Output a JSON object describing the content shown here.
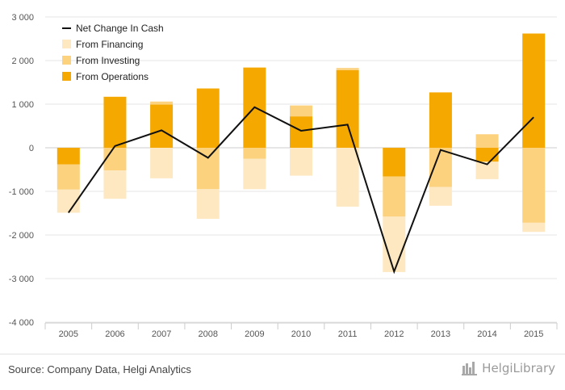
{
  "chart_data": {
    "type": "bar",
    "stacked": true,
    "categories": [
      "2005",
      "2006",
      "2007",
      "2008",
      "2009",
      "2010",
      "2011",
      "2012",
      "2013",
      "2014",
      "2015"
    ],
    "series": [
      {
        "name": "From Operations",
        "kind": "bar",
        "color": "#f5a800",
        "values": [
          -380,
          1170,
          990,
          1360,
          1840,
          720,
          1780,
          -660,
          1270,
          -320,
          2620
        ]
      },
      {
        "name": "From Investing",
        "kind": "bar",
        "color": "#fcd27f",
        "values": [
          -580,
          -520,
          70,
          -950,
          -250,
          250,
          50,
          -920,
          -900,
          310,
          -1720
        ]
      },
      {
        "name": "From Financing",
        "kind": "bar",
        "color": "#fde8c1",
        "values": [
          -530,
          -650,
          -700,
          -680,
          -700,
          -640,
          -1350,
          -1270,
          -430,
          -400,
          -210
        ]
      },
      {
        "name": "Net Change In Cash",
        "kind": "line",
        "color": "#111111",
        "values": [
          -1490,
          40,
          400,
          -230,
          930,
          390,
          530,
          -2840,
          -50,
          -380,
          700
        ]
      }
    ],
    "legend_order": [
      "Net Change In Cash",
      "From Financing",
      "From Investing",
      "From Operations"
    ],
    "ylim": [
      -4000,
      3000
    ],
    "yticks": [
      -4000,
      -3000,
      -2000,
      -1000,
      0,
      1000,
      2000,
      3000
    ],
    "ytick_labels": [
      "-4 000",
      "-3 000",
      "-2 000",
      "-1 000",
      "0",
      "1 000",
      "2 000",
      "3 000"
    ],
    "legend_position": "top-left",
    "grid": true
  },
  "footer": {
    "source": "Source: Company Data, Helgi Analytics",
    "brand": "HelgiLibrary"
  }
}
